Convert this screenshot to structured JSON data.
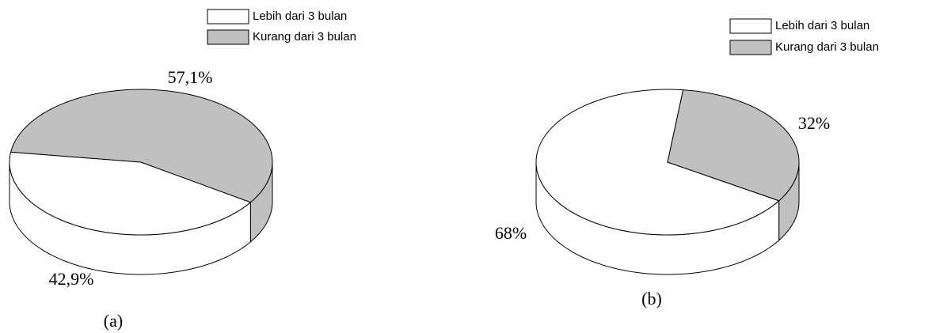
{
  "chart_data": [
    {
      "type": "pie",
      "title": "(a)",
      "categories": [
        "Lebih dari 3 bulan",
        "Kurang dari 3 bulan"
      ],
      "values": [
        42.9,
        57.1
      ],
      "value_labels": [
        "42,9%",
        "57,1%"
      ],
      "colors": [
        "#ffffff",
        "#c0c0c0"
      ]
    },
    {
      "type": "pie",
      "title": "(b)",
      "categories": [
        "Lebih dari 3 bulan",
        "Kurang dari 3 bulan"
      ],
      "values": [
        68,
        32
      ],
      "value_labels": [
        "68%",
        "32%"
      ],
      "colors": [
        "#ffffff",
        "#c0c0c0"
      ]
    }
  ]
}
